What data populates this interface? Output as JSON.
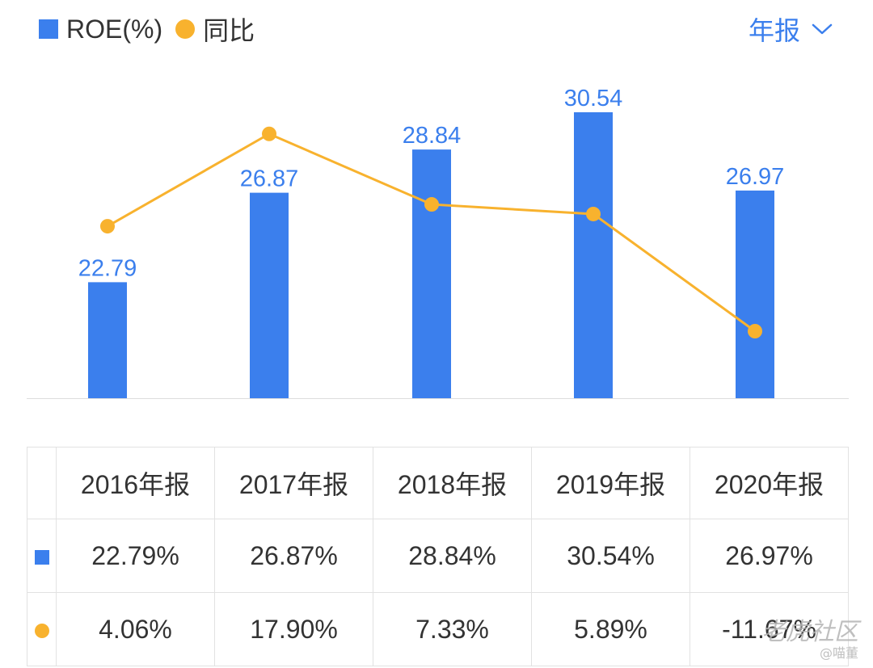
{
  "legend": {
    "bar_label": "ROE(%)",
    "line_label": "同比"
  },
  "period_selector": {
    "label": "年报"
  },
  "colors": {
    "bar": "#3b7fed",
    "line": "#f8b22e",
    "positive": "#e0393e",
    "negative": "#1fa363"
  },
  "chart_data": {
    "type": "bar",
    "categories": [
      "2016年报",
      "2017年报",
      "2018年报",
      "2019年报",
      "2020年报"
    ],
    "series": [
      {
        "name": "ROE(%)",
        "type": "bar",
        "values": [
          22.79,
          26.87,
          28.84,
          30.54,
          26.97
        ],
        "data_labels": [
          "22.79",
          "26.87",
          "28.84",
          "30.54",
          "26.97"
        ]
      },
      {
        "name": "同比",
        "type": "line",
        "values": [
          4.06,
          17.9,
          7.33,
          5.89,
          -11.67
        ]
      }
    ],
    "grid": false,
    "legend_position": "top-left"
  },
  "table": {
    "headers": [
      "2016年报",
      "2017年报",
      "2018年报",
      "2019年报",
      "2020年报"
    ],
    "roe_row": [
      "22.79%",
      "26.87%",
      "28.84%",
      "30.54%",
      "26.97%"
    ],
    "yoy_row": [
      "4.06%",
      "17.90%",
      "7.33%",
      "5.89%",
      "-11.67%"
    ]
  },
  "watermark": {
    "line1": "老虎社区",
    "line2": "@喵董"
  }
}
